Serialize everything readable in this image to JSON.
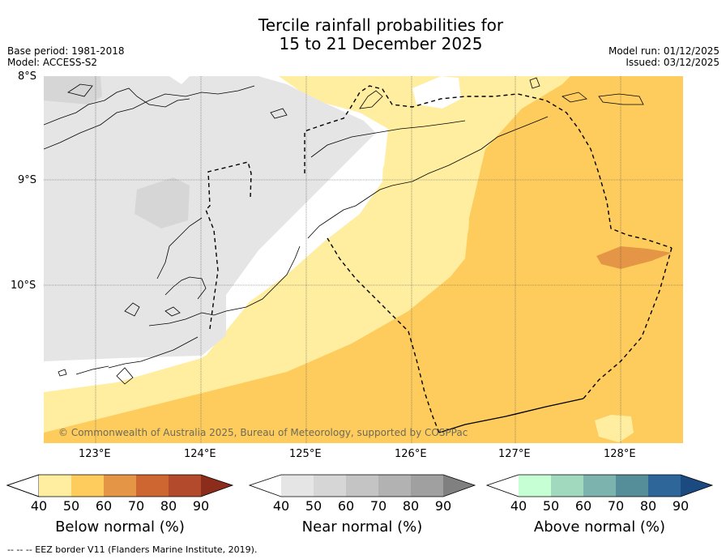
{
  "title_line1": "Tercile rainfall probabilities for",
  "title_line2": "15 to 21 December 2025",
  "meta_left": {
    "base_period": "Base period: 1981-2018",
    "model": "Model: ACCESS-S2"
  },
  "meta_right": {
    "model_run": "Model run: 01/12/2025",
    "issued": "Issued: 03/12/2025"
  },
  "lat_labels": [
    "8°S",
    "9°S",
    "10°S"
  ],
  "lon_labels": [
    "123°E",
    "124°E",
    "125°E",
    "126°E",
    "127°E",
    "128°E"
  ],
  "copyright": "© Commonwealth of Australia 2025, Bureau of Meteorology, supported by COSPPac",
  "colorbars": {
    "below": {
      "label": "Below normal (%)",
      "ticks": [
        "40",
        "50",
        "60",
        "70",
        "80",
        "90"
      ],
      "colors": [
        "#ffffff",
        "#ffeda0",
        "#fecc5c",
        "#e49545",
        "#cd6631",
        "#b24a2b",
        "#8c2d1b"
      ]
    },
    "near": {
      "label": "Near normal (%)",
      "ticks": [
        "40",
        "50",
        "60",
        "70",
        "80",
        "90"
      ],
      "colors": [
        "#ffffff",
        "#e5e5e5",
        "#d6d6d6",
        "#c4c4c4",
        "#b2b2b2",
        "#a0a0a0",
        "#808080"
      ]
    },
    "above": {
      "label": "Above normal (%)",
      "ticks": [
        "40",
        "50",
        "60",
        "70",
        "80",
        "90"
      ],
      "colors": [
        "#ffffff",
        "#c7ffd5",
        "#a0d9bd",
        "#7db3ae",
        "#558d99",
        "#2e6699",
        "#1a4a80"
      ]
    }
  },
  "footer": "--  --  -- EEZ border V11 (Flanders Marine Institute, 2019)."
}
